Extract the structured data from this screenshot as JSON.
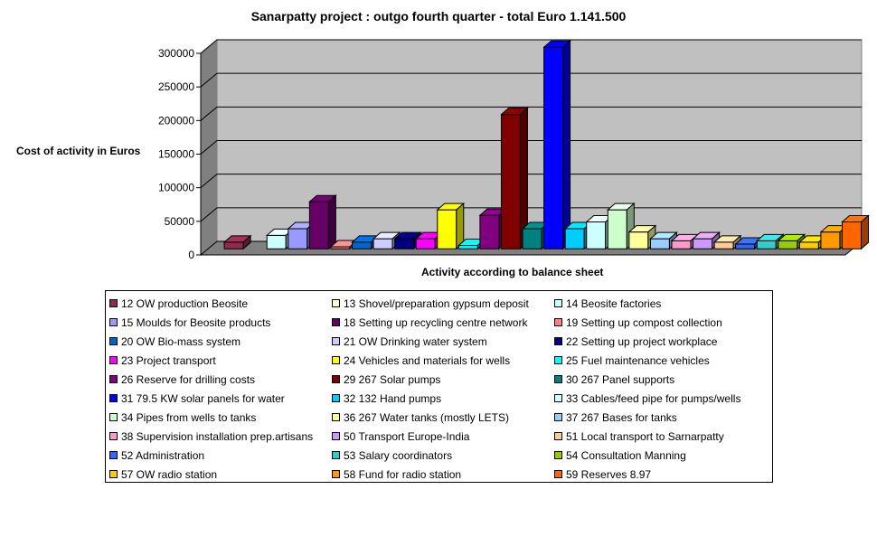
{
  "title": "Sanarpatty project : outgo fourth quarter - total Euro 1.141.500",
  "chart_data": {
    "type": "bar",
    "title": "Sanarpatty project : outgo fourth quarter - total Euro 1.141.500",
    "xlabel": "Activity according to balance sheet",
    "ylabel": "Cost of activity in Euros",
    "ylim": [
      0,
      300000
    ],
    "yticks": [
      "0",
      "50000",
      "100000",
      "150000",
      "200000",
      "250000",
      "300000"
    ],
    "grid": true,
    "legend_position": "bottom",
    "series": [
      {
        "name": "12 OW  production Beosite",
        "value": 10000,
        "color": "#8E2B4F"
      },
      {
        "name": "13 Shovel/preparation gypsum deposit",
        "value": 0,
        "color": "#FFFFCC"
      },
      {
        "name": "14 Beosite factories",
        "value": 20000,
        "color": "#CCFFFF"
      },
      {
        "name": "15 Moulds for Beosite products",
        "value": 30000,
        "color": "#9999FF"
      },
      {
        "name": "18 Setting up recycling centre network",
        "value": 70000,
        "color": "#660066"
      },
      {
        "name": "19 Setting up compost collection",
        "value": 3000,
        "color": "#FF8080"
      },
      {
        "name": "20 OW Bio-mass system",
        "value": 10000,
        "color": "#0066CC"
      },
      {
        "name": "21 OW Drinking water system",
        "value": 15000,
        "color": "#CCCCFF"
      },
      {
        "name": "22 Setting up project workplace",
        "value": 15000,
        "color": "#000080"
      },
      {
        "name": "23 Project transport",
        "value": 15000,
        "color": "#FF00FF"
      },
      {
        "name": "24 Vehicles and materials for wells",
        "value": 58000,
        "color": "#FFFF00"
      },
      {
        "name": "25 Fuel maintenance vehicles",
        "value": 5000,
        "color": "#00FFFF"
      },
      {
        "name": "26 Reserve for drilling costs",
        "value": 50000,
        "color": "#800080"
      },
      {
        "name": "29 267 Solar pumps",
        "value": 200000,
        "color": "#800000"
      },
      {
        "name": "30 267 Panel supports",
        "value": 30000,
        "color": "#008080"
      },
      {
        "name": "31 79.5 KW solar panels for water",
        "value": 300000,
        "color": "#0000FF"
      },
      {
        "name": "32 132 Hand pumps",
        "value": 30000,
        "color": "#00CCFF"
      },
      {
        "name": "33 Cables/feed pipe for pumps/wells",
        "value": 40000,
        "color": "#CCFFFF"
      },
      {
        "name": "34 Pipes from wells to tanks",
        "value": 58000,
        "color": "#CCFFCC"
      },
      {
        "name": "36 267 Water tanks (mostly LETS)",
        "value": 25000,
        "color": "#FFFF99"
      },
      {
        "name": "37 267 Bases for tanks",
        "value": 15000,
        "color": "#99CCFF"
      },
      {
        "name": "38 Supervision installation prep.artisans",
        "value": 12000,
        "color": "#FF99CC"
      },
      {
        "name": "50 Transport Europe-India",
        "value": 15000,
        "color": "#CC99FF"
      },
      {
        "name": "51 Local transport to Sarnarpatty",
        "value": 10000,
        "color": "#FFCC99"
      },
      {
        "name": "52 Administration",
        "value": 7000,
        "color": "#3366FF"
      },
      {
        "name": "53 Salary coordinators",
        "value": 12000,
        "color": "#33CCCC"
      },
      {
        "name": "54 Consultation Manning",
        "value": 12000,
        "color": "#99CC00"
      },
      {
        "name": "57 OW radio station",
        "value": 10000,
        "color": "#FFCC00"
      },
      {
        "name": "58 Fund for radio station",
        "value": 25000,
        "color": "#FF9900"
      },
      {
        "name": "59 Reserves 8.97",
        "value": 40000,
        "color": "#FF6600"
      }
    ]
  }
}
